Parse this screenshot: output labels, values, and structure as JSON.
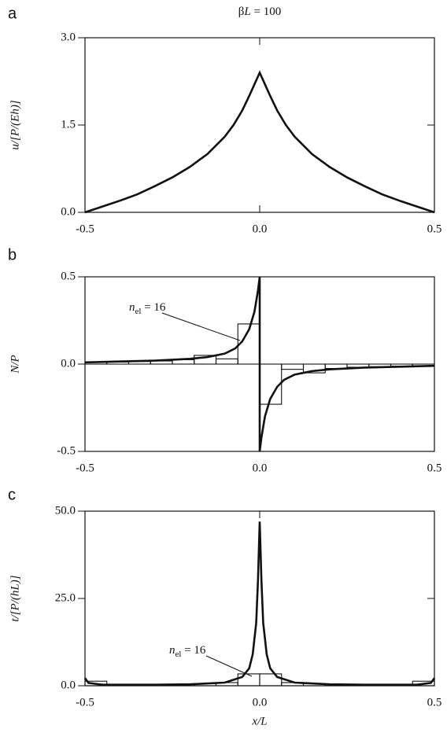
{
  "chart_data": [
    {
      "type": "line",
      "panel_label": "a",
      "title_parts": [
        "β",
        "L",
        " = 100"
      ],
      "ylabel": "u/[P/(Eh)]",
      "xlim": [
        -0.5,
        0.5
      ],
      "ylim": [
        0,
        3
      ],
      "xticks": [
        {
          "value": -0.5,
          "label": "-0.5"
        },
        {
          "value": 0,
          "label": "0.0"
        },
        {
          "value": 0.5,
          "label": "0.5"
        }
      ],
      "yticks": [
        {
          "value": 0,
          "label": "0.0"
        },
        {
          "value": 1.5,
          "label": "1.5"
        },
        {
          "value": 3,
          "label": "3.0"
        }
      ],
      "series": [
        {
          "type": "line",
          "color": "#111",
          "x": [
            -0.5,
            -0.45,
            -0.4,
            -0.35,
            -0.3,
            -0.25,
            -0.2,
            -0.15,
            -0.1,
            -0.075,
            -0.05,
            -0.03,
            -0.015,
            0,
            0.015,
            0.03,
            0.05,
            0.075,
            0.1,
            0.15,
            0.2,
            0.25,
            0.3,
            0.35,
            0.4,
            0.45,
            0.5
          ],
          "values": [
            0,
            0.1,
            0.2,
            0.31,
            0.45,
            0.6,
            0.78,
            1.0,
            1.3,
            1.5,
            1.75,
            2.0,
            2.2,
            2.4,
            2.2,
            2.0,
            1.75,
            1.5,
            1.3,
            1.0,
            0.78,
            0.6,
            0.45,
            0.31,
            0.2,
            0.1,
            0
          ]
        }
      ]
    },
    {
      "type": "line",
      "panel_label": "b",
      "ylabel": "N/P",
      "xlim": [
        -0.5,
        0.5
      ],
      "ylim": [
        -0.5,
        0.5
      ],
      "hline": 0,
      "xticks": [
        {
          "value": -0.5,
          "label": "-0.5"
        },
        {
          "value": 0,
          "label": "0.0"
        },
        {
          "value": 0.5,
          "label": "0.5"
        }
      ],
      "yticks": [
        {
          "value": -0.5,
          "label": "-0.5"
        },
        {
          "value": 0,
          "label": "0.0"
        },
        {
          "value": 0.5,
          "label": "0.5"
        }
      ],
      "annotation": [
        "n",
        "el",
        " = 16"
      ],
      "series": [
        {
          "type": "line",
          "color": "#111",
          "x": [
            -0.5,
            -0.4,
            -0.3,
            -0.2,
            -0.15,
            -0.1,
            -0.07,
            -0.05,
            -0.03,
            -0.015,
            -0.005,
            0,
            0,
            0.005,
            0.015,
            0.03,
            0.05,
            0.07,
            0.1,
            0.15,
            0.2,
            0.3,
            0.4,
            0.5
          ],
          "values": [
            0.01,
            0.015,
            0.02,
            0.03,
            0.04,
            0.06,
            0.09,
            0.13,
            0.2,
            0.3,
            0.42,
            0.5,
            -0.5,
            -0.42,
            -0.3,
            -0.2,
            -0.13,
            -0.09,
            -0.06,
            -0.04,
            -0.03,
            -0.02,
            -0.015,
            -0.01
          ]
        },
        {
          "type": "step",
          "color": "#111",
          "bins": [
            -0.5,
            -0.4375,
            -0.375,
            -0.3125,
            -0.25,
            -0.1875,
            -0.125,
            -0.0625,
            0,
            0.0625,
            0.125,
            0.1875,
            0.25,
            0.3125,
            0.375,
            0.4375,
            0.5
          ],
          "values": [
            0.01,
            0.012,
            0.015,
            0.018,
            0.025,
            0.05,
            0.03,
            0.23,
            -0.23,
            -0.03,
            -0.05,
            -0.025,
            -0.018,
            -0.015,
            -0.012,
            -0.01
          ]
        }
      ]
    },
    {
      "type": "line",
      "panel_label": "c",
      "ylabel": "t/[P/(hL)]",
      "xlabel": "x/L",
      "xlim": [
        -0.5,
        0.5
      ],
      "ylim": [
        0,
        50
      ],
      "xticks": [
        {
          "value": -0.5,
          "label": "-0.5"
        },
        {
          "value": 0,
          "label": "0.0"
        },
        {
          "value": 0.5,
          "label": "0.5"
        }
      ],
      "yticks": [
        {
          "value": 0,
          "label": "0.0"
        },
        {
          "value": 25,
          "label": "25.0"
        },
        {
          "value": 50,
          "label": "50.0"
        }
      ],
      "annotation": [
        "n",
        "el",
        " = 16"
      ],
      "series": [
        {
          "type": "line",
          "color": "#111",
          "x": [
            -0.5,
            -0.49,
            -0.45,
            -0.3,
            -0.2,
            -0.1,
            -0.05,
            -0.03,
            -0.02,
            -0.01,
            -0.005,
            0,
            0.005,
            0.01,
            0.02,
            0.03,
            0.05,
            0.1,
            0.2,
            0.3,
            0.45,
            0.49,
            0.5
          ],
          "values": [
            2.2,
            0.8,
            0.3,
            0.3,
            0.4,
            0.9,
            2.5,
            5,
            9,
            18,
            30,
            47,
            30,
            18,
            9,
            5,
            2.5,
            0.9,
            0.4,
            0.3,
            0.3,
            0.8,
            2.2
          ]
        },
        {
          "type": "step",
          "color": "#111",
          "bins": [
            -0.5,
            -0.4375,
            -0.375,
            -0.3125,
            -0.25,
            -0.1875,
            -0.125,
            -0.0625,
            0,
            0.0625,
            0.125,
            0.1875,
            0.25,
            0.3125,
            0.375,
            0.4375,
            0.5
          ],
          "values": [
            1.3,
            0.3,
            0.3,
            0.3,
            0.4,
            0.6,
            0.9,
            3.4,
            3.4,
            0.9,
            0.6,
            0.4,
            0.3,
            0.3,
            0.3,
            1.3
          ]
        }
      ]
    }
  ]
}
